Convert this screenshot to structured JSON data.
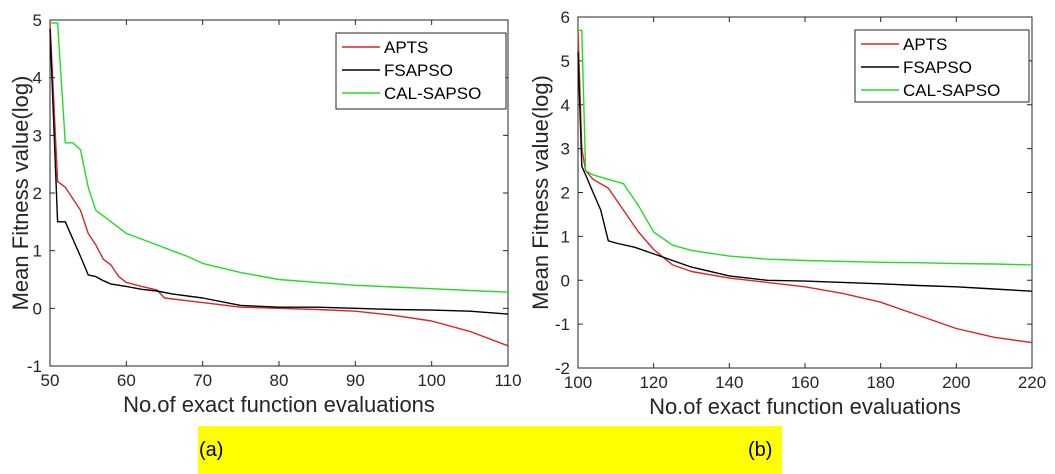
{
  "captions": {
    "a": "(a)",
    "b": "(b)"
  },
  "colors": {
    "APTS": "#d62728",
    "FSAPSO": "#000000",
    "CAL-SAPSO": "#22dd22",
    "caption_highlight": "#ffff00"
  },
  "chart_data": [
    {
      "type": "line",
      "title": "",
      "xlabel": "No.of exact function evaluations",
      "ylabel": "Mean Fitness value(log)",
      "xlim": [
        50,
        110
      ],
      "ylim": [
        -1,
        5
      ],
      "xticks": [
        50,
        60,
        70,
        80,
        90,
        100,
        110
      ],
      "xtick_labels": [
        "50",
        "60",
        "70",
        "80",
        "90",
        "100",
        "110"
      ],
      "yticks": [
        -1,
        0,
        1,
        2,
        3,
        4,
        5
      ],
      "ytick_labels": [
        "-1",
        "0",
        "1",
        "2",
        "3",
        "4",
        "5"
      ],
      "grid": false,
      "legend": "top-right",
      "series": [
        {
          "name": "APTS",
          "color": "#d62728",
          "x": [
            50,
            51,
            52,
            53,
            54,
            55,
            56,
            57,
            58,
            59,
            60,
            62,
            64,
            65,
            70,
            75,
            80,
            85,
            90,
            95,
            100,
            105,
            110
          ],
          "y": [
            4.95,
            2.2,
            2.1,
            1.9,
            1.7,
            1.3,
            1.1,
            0.85,
            0.75,
            0.55,
            0.45,
            0.38,
            0.32,
            0.18,
            0.1,
            0.02,
            0.0,
            -0.02,
            -0.05,
            -0.12,
            -0.22,
            -0.4,
            -0.65
          ]
        },
        {
          "name": "FSAPSO",
          "color": "#000000",
          "x": [
            50,
            51,
            52,
            53,
            54,
            55,
            56,
            57,
            58,
            60,
            62,
            64,
            66,
            70,
            75,
            80,
            85,
            90,
            95,
            100,
            105,
            110
          ],
          "y": [
            4.85,
            1.5,
            1.5,
            1.2,
            0.9,
            0.58,
            0.55,
            0.48,
            0.42,
            0.38,
            0.33,
            0.3,
            0.25,
            0.18,
            0.05,
            0.02,
            0.02,
            0.0,
            -0.02,
            -0.03,
            -0.05,
            -0.1
          ]
        },
        {
          "name": "CAL-SAPSO",
          "color": "#22dd22",
          "x": [
            50,
            51,
            52,
            53,
            54,
            55,
            56,
            57,
            58,
            60,
            62,
            64,
            66,
            68,
            70,
            75,
            80,
            85,
            90,
            95,
            100,
            105,
            110
          ],
          "y": [
            4.95,
            4.95,
            2.87,
            2.87,
            2.75,
            2.1,
            1.7,
            1.6,
            1.5,
            1.3,
            1.2,
            1.1,
            1.0,
            0.9,
            0.78,
            0.62,
            0.5,
            0.45,
            0.4,
            0.37,
            0.34,
            0.31,
            0.28
          ]
        }
      ]
    },
    {
      "type": "line",
      "title": "",
      "xlabel": "No.of exact function evaluations",
      "ylabel": "Mean Fitness value(log)",
      "xlim": [
        100,
        220
      ],
      "ylim": [
        -2,
        6
      ],
      "xticks": [
        100,
        120,
        140,
        160,
        180,
        200,
        220
      ],
      "xtick_labels": [
        "100",
        "120",
        "140",
        "160",
        "180",
        "200",
        "220"
      ],
      "yticks": [
        -2,
        -1,
        0,
        1,
        2,
        3,
        4,
        5,
        6
      ],
      "ytick_labels": [
        "-2",
        "-1",
        "0",
        "1",
        "2",
        "3",
        "4",
        "5",
        "6"
      ],
      "grid": false,
      "legend": "top-right",
      "series": [
        {
          "name": "APTS",
          "color": "#d62728",
          "x": [
            100,
            101,
            102,
            104,
            108,
            112,
            116,
            120,
            125,
            130,
            140,
            150,
            160,
            170,
            180,
            190,
            200,
            210,
            220
          ],
          "y": [
            5.7,
            3.0,
            2.5,
            2.3,
            2.1,
            1.6,
            1.1,
            0.7,
            0.35,
            0.2,
            0.05,
            -0.05,
            -0.15,
            -0.3,
            -0.5,
            -0.8,
            -1.1,
            -1.3,
            -1.42
          ]
        },
        {
          "name": "FSAPSO",
          "color": "#000000",
          "x": [
            100,
            101,
            102,
            104,
            106,
            108,
            110,
            115,
            120,
            125,
            130,
            140,
            150,
            160,
            170,
            180,
            190,
            200,
            210,
            220
          ],
          "y": [
            5.2,
            2.6,
            2.4,
            2.0,
            1.6,
            0.9,
            0.85,
            0.75,
            0.6,
            0.45,
            0.3,
            0.1,
            0.0,
            -0.02,
            -0.05,
            -0.08,
            -0.12,
            -0.15,
            -0.2,
            -0.25
          ]
        },
        {
          "name": "CAL-SAPSO",
          "color": "#22dd22",
          "x": [
            100,
            101,
            102,
            104,
            108,
            112,
            116,
            120,
            125,
            130,
            140,
            150,
            160,
            170,
            180,
            190,
            200,
            210,
            220
          ],
          "y": [
            5.7,
            5.7,
            2.5,
            2.4,
            2.3,
            2.2,
            1.7,
            1.1,
            0.8,
            0.68,
            0.55,
            0.48,
            0.45,
            0.43,
            0.41,
            0.4,
            0.38,
            0.37,
            0.35
          ]
        }
      ]
    }
  ]
}
